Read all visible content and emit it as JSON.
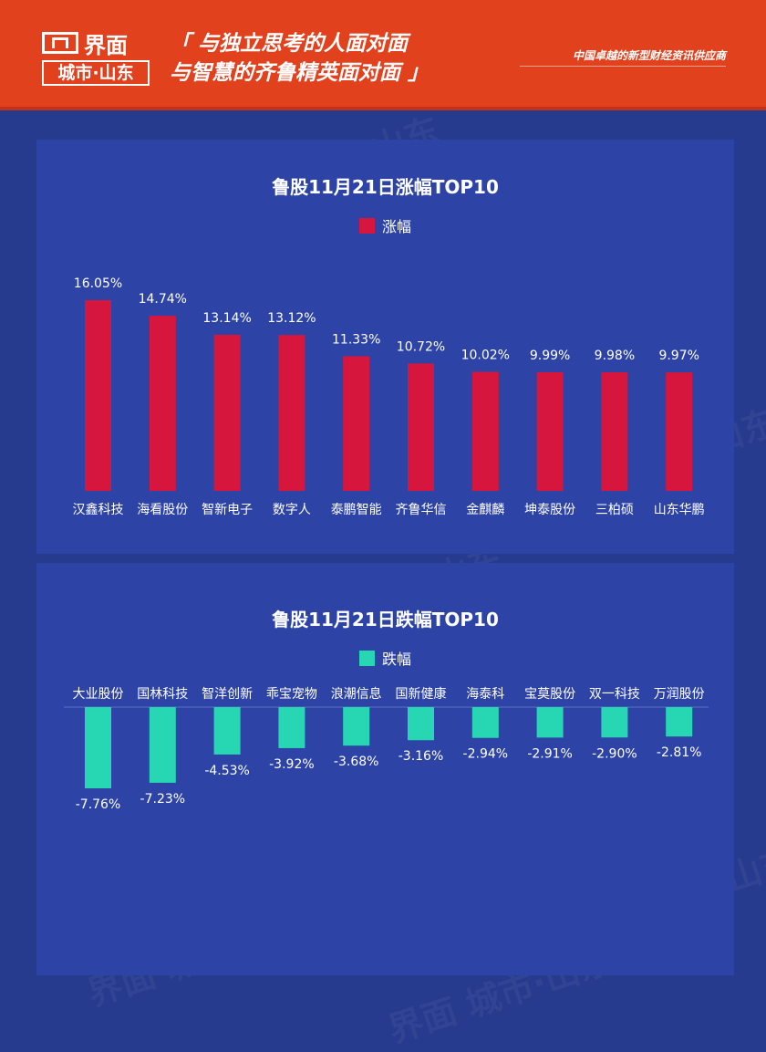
{
  "header": {
    "logo_top": "界面",
    "logo_bottom": "城市·山东",
    "slogan": "「 与独立思考的人面对面\n与智慧的齐鲁精英面对面 」",
    "tagline": "中国卓越的新型财经资讯供应商"
  },
  "colors": {
    "up": "#d6163c",
    "down": "#27d6b3",
    "header": "#e2411e",
    "panel": "#2d44a6",
    "background": "#263a8e"
  },
  "watermark": "界面 城市·山东",
  "chart_data": [
    {
      "type": "bar",
      "title": "鲁股11月21日涨幅TOP10",
      "legend": "涨幅",
      "categories": [
        "汉鑫科技",
        "海看股份",
        "智新电子",
        "数字人",
        "泰鹏智能",
        "齐鲁华信",
        "金麒麟",
        "坤泰股份",
        "三柏硕",
        "山东华鹏"
      ],
      "values": [
        16.05,
        14.74,
        13.14,
        13.12,
        11.33,
        10.72,
        10.02,
        9.99,
        9.98,
        9.97
      ],
      "labels": [
        "16.05%",
        "14.74%",
        "13.14%",
        "13.12%",
        "11.33%",
        "10.72%",
        "10.02%",
        "9.99%",
        "9.98%",
        "9.97%"
      ],
      "ylim": [
        0,
        17
      ]
    },
    {
      "type": "bar",
      "title": "鲁股11月21日跌幅TOP10",
      "legend": "跌幅",
      "categories": [
        "大业股份",
        "国林科技",
        "智洋创新",
        "乖宝宠物",
        "浪潮信息",
        "国新健康",
        "海泰科",
        "宝莫股份",
        "双一科技",
        "万润股份"
      ],
      "values": [
        -7.76,
        -7.23,
        -4.53,
        -3.92,
        -3.68,
        -3.16,
        -2.94,
        -2.91,
        -2.9,
        -2.81
      ],
      "labels": [
        "-7.76%",
        "-7.23%",
        "-4.53%",
        "-3.92%",
        "-3.68%",
        "-3.16%",
        "-2.94%",
        "-2.91%",
        "-2.90%",
        "-2.81%"
      ],
      "ylim": [
        -8,
        0
      ]
    }
  ]
}
